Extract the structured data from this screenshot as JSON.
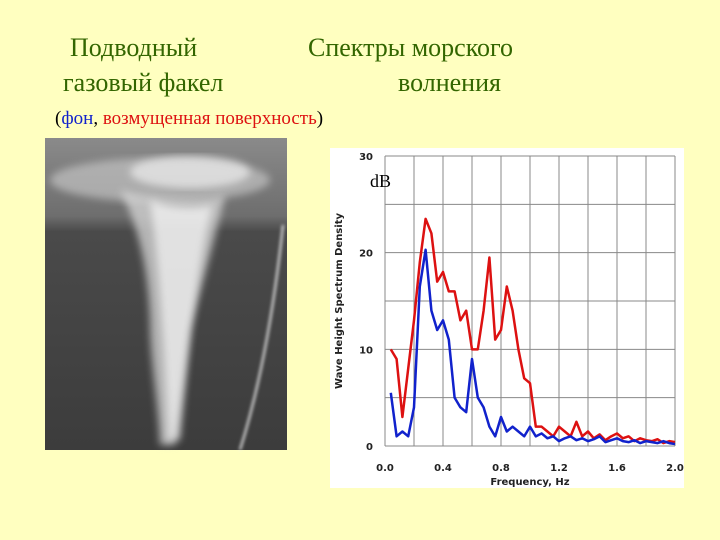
{
  "slide": {
    "left_title_line1": "Подводный",
    "left_title_line2": "газовый факел",
    "right_title_line1": "Спектры морского",
    "right_title_line2": "волнения"
  },
  "chart_data": {
    "type": "line",
    "legend_open": "(",
    "legend_separator": ",",
    "legend_close": ")",
    "unit_label": "dB",
    "y_label": "Wave Height Spectrum Density",
    "x_label": "Frequency, Hz",
    "xlim": [
      0,
      2
    ],
    "ylim": [
      0,
      30
    ],
    "xticks": [
      {
        "value": 0,
        "label": "0.0"
      },
      {
        "value": 0.4,
        "label": "0.4"
      },
      {
        "value": 0.8,
        "label": "0.8"
      },
      {
        "value": 1.2,
        "label": "1.2"
      },
      {
        "value": 1.6,
        "label": "1.6"
      },
      {
        "value": 2,
        "label": "2.0"
      }
    ],
    "yticks": [
      0,
      10,
      20,
      30
    ],
    "xgrid": [
      0,
      0.2,
      0.4,
      0.6,
      0.8,
      1,
      1.2,
      1.4,
      1.6,
      1.8,
      2
    ],
    "ygrid": [
      0,
      5,
      10,
      15,
      20,
      25,
      30
    ],
    "x": [
      0.04,
      0.08,
      0.12,
      0.16,
      0.2,
      0.24,
      0.28,
      0.32,
      0.36,
      0.4,
      0.44,
      0.48,
      0.52,
      0.56,
      0.6,
      0.64,
      0.68,
      0.72,
      0.76,
      0.8,
      0.84,
      0.88,
      0.92,
      0.96,
      1,
      1.04,
      1.08,
      1.12,
      1.16,
      1.2,
      1.24,
      1.28,
      1.32,
      1.36,
      1.4,
      1.44,
      1.48,
      1.52,
      1.56,
      1.6,
      1.64,
      1.68,
      1.72,
      1.76,
      1.8,
      1.84,
      1.88,
      1.92,
      1.96,
      2
    ],
    "series": [
      {
        "name": "возмущенная поверхность",
        "color": "#dd1111",
        "values": [
          10,
          9,
          3,
          8,
          13,
          19,
          23.5,
          22,
          17,
          18,
          16,
          16,
          13,
          14,
          10,
          10,
          14,
          19.5,
          11,
          12,
          16.5,
          14,
          10,
          7,
          6.5,
          2,
          2,
          1.5,
          1,
          2,
          1.5,
          1,
          2.5,
          1,
          1.5,
          0.8,
          1.2,
          0.6,
          1,
          1.3,
          0.8,
          1,
          0.5,
          0.8,
          0.6,
          0.5,
          0.7,
          0.3,
          0.5,
          0.4
        ]
      },
      {
        "name": "фон",
        "color": "#1122cc",
        "values": [
          5.5,
          1,
          1.5,
          1,
          4,
          16.5,
          20.3,
          14,
          12,
          13,
          11,
          5,
          4,
          3.5,
          9,
          5,
          4,
          2,
          1,
          3,
          1.5,
          2,
          1.5,
          1,
          2,
          1,
          1.3,
          0.8,
          1,
          0.5,
          0.8,
          1,
          0.6,
          0.8,
          0.5,
          0.7,
          1,
          0.4,
          0.6,
          0.8,
          0.5,
          0.4,
          0.6,
          0.3,
          0.5,
          0.4,
          0.3,
          0.5,
          0.3,
          0.2
        ]
      }
    ]
  }
}
